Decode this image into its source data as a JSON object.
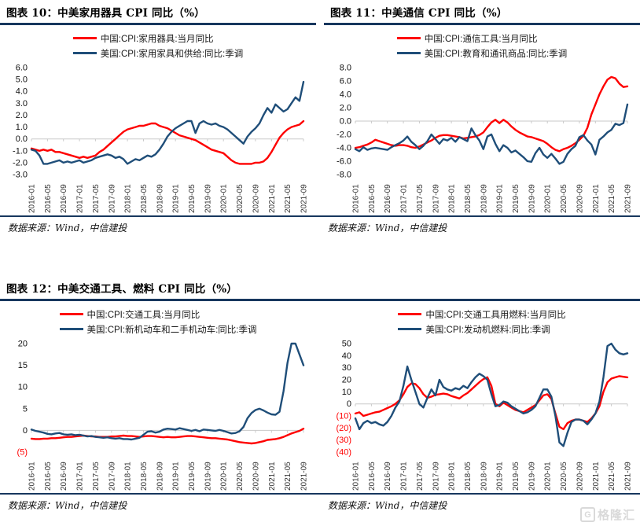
{
  "page": {
    "rule_color": "#17375E",
    "axis_color": "#C9C9C9",
    "source": "数据来源：Wind，中信建投",
    "watermark": "格隆汇",
    "watermark_logo": "G"
  },
  "panels": [
    {
      "title": "图表 10：中美家用器具 CPI 同比（%）",
      "source": "数据来源：Wind，中信建投"
    },
    {
      "title": "图表 11：中美通信 CPI 同比（%）",
      "source": "数据来源：Wind，中信建投"
    },
    {
      "title": "图表 12：中美交通工具、燃料 CPI 同比（%）",
      "source": "数据来源：Wind，中信建投"
    }
  ],
  "chart_data": [
    {
      "type": "line",
      "title": "图表 10：中美家用器具 CPI 同比（%）",
      "xlabel": "",
      "ylabel": "",
      "legend_position": "top",
      "grid": false,
      "n_points": 69,
      "tick_every": 4,
      "x_labels": [
        "2016-01",
        "2016-05",
        "2016-09",
        "2017-01",
        "2017-05",
        "2017-09",
        "2018-01",
        "2018-05",
        "2018-09",
        "2019-01",
        "2019-05",
        "2019-09",
        "2020-01",
        "2020-05",
        "2020-09",
        "2021-01",
        "2021-05",
        "2021-09"
      ],
      "ylim": [
        -3,
        6
      ],
      "yticks": [
        {
          "v": 6,
          "label": "6.0"
        },
        {
          "v": 5,
          "label": "5.0"
        },
        {
          "v": 4,
          "label": "4.0"
        },
        {
          "v": 3,
          "label": "3.0"
        },
        {
          "v": 2,
          "label": "2.0"
        },
        {
          "v": 1,
          "label": "1.0"
        },
        {
          "v": 0,
          "label": "0.0"
        },
        {
          "v": -1,
          "label": "-1.0"
        },
        {
          "v": -2,
          "label": "-2.0"
        },
        {
          "v": -3,
          "label": "-3.0"
        }
      ],
      "series": [
        {
          "name": "中国:CPI:家用器具:当月同比",
          "color": "#FE0000",
          "values": [
            -0.8,
            -0.9,
            -1.0,
            -0.9,
            -1.0,
            -0.9,
            -1.1,
            -1.1,
            -1.2,
            -1.3,
            -1.4,
            -1.5,
            -1.6,
            -1.5,
            -1.6,
            -1.5,
            -1.4,
            -1.1,
            -0.9,
            -0.6,
            -0.3,
            0.0,
            0.3,
            0.6,
            0.8,
            0.9,
            1.0,
            1.1,
            1.1,
            1.2,
            1.3,
            1.3,
            1.1,
            1.0,
            0.9,
            0.7,
            0.5,
            0.3,
            0.2,
            0.1,
            0.0,
            -0.1,
            -0.3,
            -0.5,
            -0.7,
            -0.9,
            -1.0,
            -1.1,
            -1.2,
            -1.5,
            -1.8,
            -2.0,
            -2.1,
            -2.1,
            -2.1,
            -2.1,
            -2.0,
            -2.0,
            -1.9,
            -1.6,
            -1.1,
            -0.5,
            0.1,
            0.5,
            0.8,
            1.0,
            1.1,
            1.2,
            1.5
          ]
        },
        {
          "name": "美国:CPI:家用家具和供给:同比:季调",
          "color": "#1F4E79",
          "values": [
            -0.9,
            -1.0,
            -1.4,
            -2.1,
            -2.1,
            -2.0,
            -1.9,
            -1.8,
            -2.0,
            -1.9,
            -2.0,
            -1.9,
            -1.8,
            -2.0,
            -1.9,
            -1.8,
            -1.6,
            -1.5,
            -1.4,
            -1.3,
            -1.4,
            -1.6,
            -1.5,
            -1.7,
            -2.1,
            -1.9,
            -1.7,
            -1.8,
            -1.6,
            -1.4,
            -1.5,
            -1.3,
            -0.9,
            -0.4,
            0.2,
            0.6,
            0.9,
            1.1,
            1.3,
            1.5,
            1.5,
            0.5,
            1.3,
            1.5,
            1.3,
            1.2,
            1.3,
            1.1,
            1.0,
            0.8,
            0.5,
            0.2,
            -0.1,
            -0.4,
            0.2,
            0.6,
            0.9,
            1.3,
            2.0,
            2.6,
            2.2,
            2.9,
            2.6,
            2.3,
            2.5,
            3.0,
            3.5,
            3.2,
            4.8
          ]
        }
      ]
    },
    {
      "type": "line",
      "title": "图表 11：中美通信 CPI 同比（%）",
      "xlabel": "",
      "ylabel": "",
      "legend_position": "top",
      "grid": false,
      "n_points": 69,
      "tick_every": 4,
      "x_labels": [
        "2016-01",
        "2016-05",
        "2016-09",
        "2017-01",
        "2017-05",
        "2017-09",
        "2018-01",
        "2018-05",
        "2018-09",
        "2019-01",
        "2019-05",
        "2019-09",
        "2020-01",
        "2020-05",
        "2020-09",
        "2021-01",
        "2021-05",
        "2021-09"
      ],
      "ylim": [
        -8,
        8
      ],
      "yticks": [
        {
          "v": 8,
          "label": "8.0"
        },
        {
          "v": 6,
          "label": "6.0"
        },
        {
          "v": 4,
          "label": "4.0"
        },
        {
          "v": 2,
          "label": "2.0"
        },
        {
          "v": 0,
          "label": "0.0"
        },
        {
          "v": -2,
          "label": "-2.0"
        },
        {
          "v": -4,
          "label": "-4.0"
        },
        {
          "v": -6,
          "label": "-6.0"
        },
        {
          "v": -8,
          "label": "-8.0"
        }
      ],
      "series": [
        {
          "name": "中国:CPI:通信工具:当月同比",
          "color": "#FE0000",
          "values": [
            -4.0,
            -3.9,
            -3.7,
            -3.5,
            -3.2,
            -2.8,
            -3.0,
            -3.2,
            -3.4,
            -3.6,
            -3.7,
            -3.6,
            -3.6,
            -3.7,
            -3.9,
            -4.0,
            -3.8,
            -3.5,
            -3.2,
            -2.9,
            -2.5,
            -2.2,
            -2.1,
            -2.1,
            -2.2,
            -2.3,
            -2.4,
            -2.6,
            -2.5,
            -2.4,
            -2.3,
            -2.1,
            -1.7,
            -0.9,
            -0.2,
            0.2,
            -0.3,
            0.2,
            -0.2,
            -0.8,
            -1.3,
            -1.7,
            -2.0,
            -2.3,
            -2.4,
            -2.6,
            -2.8,
            -3.0,
            -3.4,
            -3.9,
            -4.3,
            -4.5,
            -4.2,
            -4.0,
            -3.7,
            -3.3,
            -2.8,
            -2.2,
            -1.0,
            1.0,
            2.5,
            4.0,
            5.2,
            6.2,
            6.6,
            6.4,
            5.6,
            5.1,
            5.2
          ]
        },
        {
          "name": "美国:CPI:教育和通讯商品:同比:季调",
          "color": "#1F4E79",
          "values": [
            -4.2,
            -4.5,
            -3.9,
            -4.3,
            -4.1,
            -4.0,
            -4.1,
            -4.2,
            -4.3,
            -3.9,
            -3.6,
            -3.3,
            -2.9,
            -2.3,
            -3.1,
            -3.6,
            -4.2,
            -3.7,
            -3.0,
            -2.0,
            -2.7,
            -3.4,
            -2.7,
            -2.9,
            -2.5,
            -3.1,
            -2.4,
            -2.7,
            -3.0,
            -1.1,
            -2.1,
            -2.9,
            -4.2,
            -2.3,
            -2.0,
            -3.4,
            -4.5,
            -3.6,
            -4.0,
            -4.7,
            -4.4,
            -4.9,
            -5.4,
            -6.0,
            -6.1,
            -4.8,
            -4.0,
            -5.0,
            -5.5,
            -4.9,
            -5.6,
            -6.4,
            -6.1,
            -4.9,
            -4.2,
            -3.7,
            -2.4,
            -2.1,
            -2.9,
            -3.5,
            -5.0,
            -2.8,
            -2.3,
            -1.7,
            -1.3,
            -0.4,
            -0.6,
            -0.3,
            2.5
          ]
        }
      ]
    },
    {
      "type": "line",
      "title": "图表 12：中美交通工具、燃料 CPI 同比（%）（左图：交通工具）",
      "xlabel": "",
      "ylabel": "",
      "legend_position": "top",
      "grid": false,
      "n_points": 69,
      "tick_every": 4,
      "x_labels": [
        "2016-01",
        "2016-05",
        "2016-09",
        "2017-01",
        "2017-05",
        "2017-09",
        "2018-01",
        "2018-05",
        "2018-09",
        "2019-01",
        "2019-05",
        "2019-09",
        "2020-01",
        "2020-05",
        "2020-09",
        "2021-01",
        "2021-05",
        "2021-09"
      ],
      "ylim": [
        -5,
        20
      ],
      "yticks": [
        {
          "v": 20,
          "label": "20"
        },
        {
          "v": 15,
          "label": "15"
        },
        {
          "v": 10,
          "label": "10"
        },
        {
          "v": 5,
          "label": "5"
        },
        {
          "v": 0,
          "label": "0"
        },
        {
          "v": -5,
          "label": "(5)",
          "neg": true
        }
      ],
      "series": [
        {
          "name": "中国:CPI:交通工具:当月同比",
          "color": "#FE0000",
          "values": [
            -1.9,
            -2.0,
            -2.0,
            -1.9,
            -1.9,
            -1.8,
            -1.8,
            -1.7,
            -1.6,
            -1.5,
            -1.5,
            -1.4,
            -1.3,
            -1.2,
            -1.3,
            -1.4,
            -1.4,
            -1.5,
            -1.5,
            -1.5,
            -1.4,
            -1.4,
            -1.3,
            -1.2,
            -1.3,
            -1.3,
            -1.4,
            -1.5,
            -1.4,
            -1.3,
            -1.3,
            -1.4,
            -1.5,
            -1.6,
            -1.5,
            -1.6,
            -1.6,
            -1.5,
            -1.4,
            -1.3,
            -1.3,
            -1.4,
            -1.5,
            -1.6,
            -1.7,
            -1.8,
            -1.8,
            -1.9,
            -2.0,
            -2.1,
            -2.3,
            -2.5,
            -2.7,
            -2.8,
            -2.9,
            -3.0,
            -2.9,
            -2.7,
            -2.5,
            -2.2,
            -2.1,
            -2.0,
            -1.8,
            -1.5,
            -1.1,
            -0.7,
            -0.4,
            -0.1,
            0.4
          ]
        },
        {
          "name": "美国:CPI:新机动车和二手机动车:同比:季调",
          "color": "#1F4E79",
          "values": [
            0.2,
            -0.1,
            -0.3,
            -0.5,
            -0.8,
            -0.9,
            -0.7,
            -0.6,
            -0.9,
            -1.0,
            -0.9,
            -1.1,
            -1.0,
            -1.2,
            -1.4,
            -1.3,
            -1.5,
            -1.6,
            -1.7,
            -1.6,
            -1.8,
            -1.9,
            -1.8,
            -2.0,
            -2.0,
            -2.1,
            -1.9,
            -1.7,
            -1.0,
            -0.3,
            -0.2,
            -0.5,
            -0.3,
            0.2,
            0.4,
            0.3,
            0.2,
            0.5,
            0.3,
            0.1,
            -0.1,
            0.1,
            -0.2,
            0.2,
            0.1,
            0.0,
            -0.1,
            0.1,
            -0.1,
            -0.4,
            -0.7,
            -0.6,
            -0.2,
            0.8,
            2.8,
            4.0,
            4.7,
            5.0,
            4.6,
            4.1,
            3.7,
            3.6,
            4.3,
            9.0,
            15.5,
            20.0,
            20.0,
            17.5,
            15.0
          ]
        }
      ]
    },
    {
      "type": "line",
      "title": "图表 12：中美交通工具、燃料 CPI 同比（%）（右图：燃料）",
      "xlabel": "",
      "ylabel": "",
      "legend_position": "top",
      "grid": false,
      "n_points": 69,
      "tick_every": 4,
      "x_labels": [
        "2016-01",
        "2016-05",
        "2016-09",
        "2017-01",
        "2017-05",
        "2017-09",
        "2018-01",
        "2018-05",
        "2018-09",
        "2019-01",
        "2019-05",
        "2019-09",
        "2020-01",
        "2020-05",
        "2020-09",
        "2021-01",
        "2021-05",
        "2021-09"
      ],
      "ylim": [
        -40,
        50
      ],
      "yticks": [
        {
          "v": 50,
          "label": "50"
        },
        {
          "v": 40,
          "label": "40"
        },
        {
          "v": 30,
          "label": "30"
        },
        {
          "v": 20,
          "label": "20"
        },
        {
          "v": 10,
          "label": "10"
        },
        {
          "v": 0,
          "label": "0"
        },
        {
          "v": -10,
          "label": "(10)",
          "neg": true
        },
        {
          "v": -20,
          "label": "(20)",
          "neg": true
        },
        {
          "v": -30,
          "label": "(30)",
          "neg": true
        },
        {
          "v": -40,
          "label": "(40)",
          "neg": true
        }
      ],
      "series": [
        {
          "name": "中国:CPI:交通工具用燃料:当月同比",
          "color": "#FE0000",
          "values": [
            -8,
            -7,
            -10,
            -9,
            -8,
            -7,
            -6.5,
            -5,
            -3.5,
            -2,
            0,
            3,
            8,
            14,
            17,
            16.5,
            13,
            8,
            5,
            6,
            7.5,
            8,
            8.5,
            8,
            6.5,
            5.5,
            4.5,
            7,
            9,
            12,
            15,
            18,
            20.5,
            22,
            15,
            0,
            -2,
            1,
            -1,
            -3,
            -5,
            -6,
            -7,
            -5,
            -3,
            -1,
            3,
            7,
            8,
            4,
            -8,
            -19,
            -21,
            -16,
            -14,
            -13,
            -13,
            -14,
            -15,
            -12,
            -8,
            -2,
            10,
            18,
            21,
            22,
            23,
            22.5,
            22
          ]
        },
        {
          "name": "美国:CPI:发动机燃料:同比:季调",
          "color": "#1F4E79",
          "values": [
            -12,
            -21,
            -16,
            -14,
            -16,
            -15,
            -17,
            -18,
            -15,
            -10,
            -3,
            2,
            15,
            31,
            20,
            10,
            0,
            -3,
            5,
            12,
            7,
            20,
            14,
            12,
            11,
            13,
            12,
            15,
            13,
            18,
            22,
            25,
            23,
            20,
            8,
            -2,
            -1,
            2,
            1,
            -2,
            -4,
            -6,
            -8,
            -7,
            -5,
            -2,
            5,
            12,
            12,
            6,
            -10,
            -32,
            -35,
            -24,
            -15,
            -13,
            -13,
            -14,
            -17,
            -13,
            -8,
            2,
            22,
            48,
            53,
            45,
            42,
            41,
            42
          ]
        }
      ]
    }
  ]
}
